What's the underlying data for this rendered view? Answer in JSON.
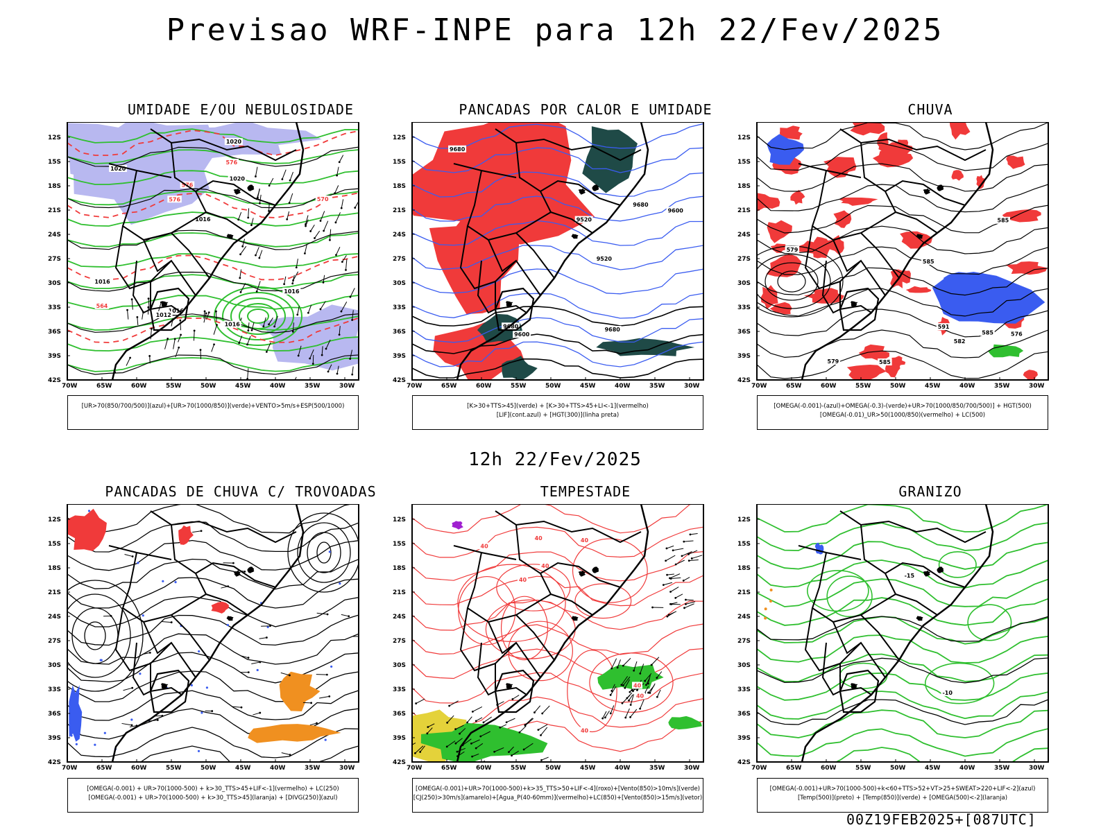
{
  "header": {
    "title": "Previsao WRF-INPE  para 12h 22/Fev/2025"
  },
  "middle": {
    "subtitle": "12h 22/Fev/2025"
  },
  "footer": {
    "run_stamp": "00Z19FEB2025+[087UTC]"
  },
  "axes": {
    "lat_labels": [
      "12S",
      "15S",
      "18S",
      "21S",
      "24S",
      "27S",
      "30S",
      "33S",
      "36S",
      "39S",
      "42S"
    ],
    "lon_labels": [
      "70W",
      "65W",
      "60W",
      "55W",
      "50W",
      "45W",
      "40W",
      "35W",
      "30W"
    ]
  },
  "colors": {
    "red": "#f03a3a",
    "green": "#2fbf2f",
    "blue": "#3a5cf0",
    "lavender": "#b8b8f0",
    "darkteal": "#1f4a47",
    "orange": "#f09020",
    "yellow": "#e4d23a",
    "purple": "#a020d0"
  },
  "panels": [
    {
      "id": "umidade",
      "title": "UMIDADE E/OU NEBULOSIDADE",
      "legend": [
        "[UR>70(850/700/500)](azul)+[UR>70(1000/850)](verde)+VENTO>5m/s+ESP(500/1000)"
      ],
      "contour_labels": [
        "1020",
        "1016",
        "1016",
        "1016",
        "1012",
        "1016",
        "1020",
        "1020",
        "1016",
        "576",
        "576",
        "570",
        "564",
        "576"
      ]
    },
    {
      "id": "pancadas_calor",
      "title": "PANCADAS POR CALOR E UMIDADE",
      "legend": [
        "[K>30+TTS>45](verde)  +  [K>30+TTS>45+LI<-1](vermelho)",
        "[LIF](cont.azul)  +  [HGT(300)](linha preta)"
      ],
      "contour_labels": [
        "9680",
        "9680",
        "9680",
        "9680",
        "9600",
        "9600",
        "9520",
        "9520"
      ]
    },
    {
      "id": "chuva",
      "title": "CHUVA",
      "legend": [
        "[OMEGA(-0.001)-(azul)+OMEGA(-0.3)-(verde)+UR>70(1000/850/700/500)]  +  HGT(500)",
        "[OMEGA(-0.01)_UR>50(1000/850)(vermelho)  +  LC(500)"
      ],
      "contour_labels": [
        "585",
        "585",
        "591",
        "585",
        "585",
        "579",
        "582",
        "579",
        "576"
      ]
    },
    {
      "id": "pancadas_trovoadas",
      "title": "PANCADAS DE CHUVA C/ TROVOADAS",
      "legend": [
        "[OMEGA(-0.001)  +  UR>70(1000-500)  +  k>30_TTS>45+LIF<-1](vermelho)  +  LC(250)",
        "[OMEGA(-0.001)  +  UR>70(1000-500)  +  k>30_TTS>45](laranja)  +  [DIVG(250)](azul)"
      ],
      "contour_labels": []
    },
    {
      "id": "tempestade",
      "title": "TEMPESTADE",
      "legend": [
        "[OMEGA(-0.001)+UR>70(1000-500)+k>35_TTS>50+LIF<-4](roxo)+[Vento(850)>10m/s](verde)",
        "[CJ(250)>30m/s](amarelo)+[Agua_P(40-60mm)](vermelho)+LC(850)+[Vento(850)>15m/s](vetor)"
      ],
      "contour_labels": [
        "40",
        "40",
        "40",
        "40",
        "40",
        "40",
        "40",
        "40"
      ]
    },
    {
      "id": "granizo",
      "title": "GRANIZO",
      "legend": [
        "[OMEGA(-0.001)+UR>70(1000-500)+k<60+TTS>52+VT>25+SWEAT>220+LIF<-2](azul)",
        "[Temp(500)](preto)  +  [Temp(850)](verde)  +  [OMEGA(500)<-2](laranja)"
      ],
      "contour_labels": [
        "-10",
        "-15"
      ]
    }
  ]
}
